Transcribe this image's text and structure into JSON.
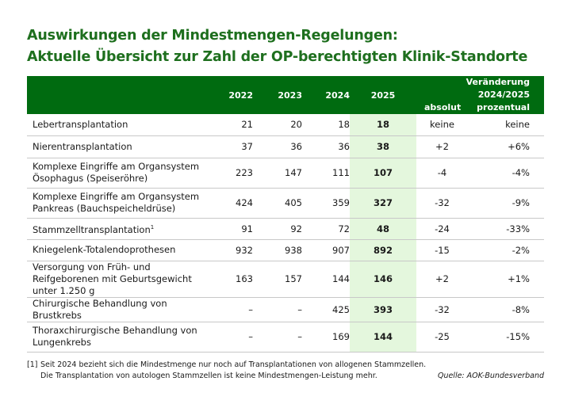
{
  "title_line1": "Auswirkungen der Mindestmengen-Regelungen:",
  "title_line2": "Aktuelle Übersicht zur Zahl der OP-berechtigten Klinik-Standorte",
  "colors": {
    "header": "#006b10",
    "title": "#1e6f1e",
    "highlight": "#e4f7dd"
  },
  "chart_data": {
    "type": "table",
    "columns": [
      "2022",
      "2023",
      "2024",
      "2025"
    ],
    "change_header": "Veränderung 2024/2025",
    "change_columns": [
      "absolut",
      "prozentual"
    ],
    "rows": [
      {
        "label": "Lebertransplantation",
        "sup": "",
        "values": [
          "21",
          "20",
          "18",
          "18"
        ],
        "abs": "keine",
        "pct": "keine"
      },
      {
        "label": "Nierentransplantation",
        "sup": "",
        "values": [
          "37",
          "36",
          "36",
          "38"
        ],
        "abs": "+2",
        "pct": "+6%"
      },
      {
        "label": "Komplexe Eingriffe am Organsystem Ösophagus (Speiseröhre)",
        "sup": "",
        "values": [
          "223",
          "147",
          "111",
          "107"
        ],
        "abs": "-4",
        "pct": "-4%"
      },
      {
        "label": "Komplexe Eingriffe am Organsystem Pankreas (Bauchspeicheldrüse)",
        "sup": "",
        "values": [
          "424",
          "405",
          "359",
          "327"
        ],
        "abs": "-32",
        "pct": "-9%"
      },
      {
        "label": "Stammzelltransplantation",
        "sup": "1",
        "values": [
          "91",
          "92",
          "72",
          "48"
        ],
        "abs": "-24",
        "pct": "-33%"
      },
      {
        "label": "Kniegelenk-Totalendoprothesen",
        "sup": "",
        "values": [
          "932",
          "938",
          "907",
          "892"
        ],
        "abs": "-15",
        "pct": "-2%"
      },
      {
        "label": "Versorgung von Früh- und Reifgeborenen mit Geburtsgewicht unter 1.250 g",
        "sup": "",
        "values": [
          "163",
          "157",
          "144",
          "146"
        ],
        "abs": "+2",
        "pct": "+1%"
      },
      {
        "label": "Chirurgische Behandlung von Brustkrebs",
        "sup": "",
        "values": [
          "–",
          "–",
          "425",
          "393"
        ],
        "abs": "-32",
        "pct": "-8%"
      },
      {
        "label": "Thoraxchirurgische Behandlung von Lungenkrebs",
        "sup": "",
        "values": [
          "–",
          "–",
          "169",
          "144"
        ],
        "abs": "-25",
        "pct": "-15%"
      }
    ]
  },
  "footnote_marker": "[1]",
  "footnote_line1": "Seit 2024 bezieht sich die Mindestmenge nur noch auf Transplantationen von allogenen Stammzellen.",
  "footnote_line2": "Die Transplantation von autologen Stammzellen ist keine Mindestmengen-Leistung mehr.",
  "source": "Quelle: AOK-Bundesverband"
}
